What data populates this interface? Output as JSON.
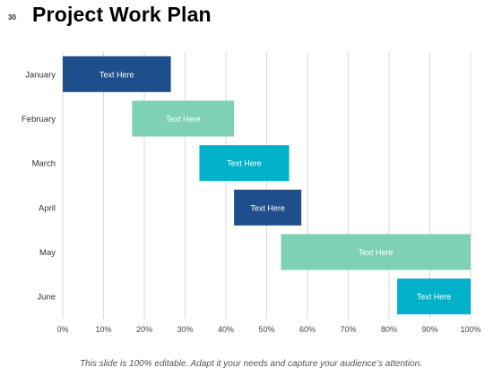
{
  "slide": {
    "number": "30",
    "title": "Project Work Plan",
    "footer": "This slide is 100% editable. Adapt it your needs and capture your audience’s attention."
  },
  "chart_data": {
    "type": "bar",
    "orientation": "horizontal",
    "stacked_gantt": true,
    "categories": [
      "January",
      "February",
      "March",
      "April",
      "May",
      "June"
    ],
    "series": [
      {
        "values": [
          0,
          17,
          33.5,
          42,
          53.5,
          82
        ]
      },
      {
        "values": [
          26.5,
          25,
          22,
          16.5,
          46.5,
          18
        ]
      }
    ],
    "bar_labels": [
      "Text Here",
      "Text Here",
      "Text Here",
      "Text Here",
      "Text Here",
      "Text Here"
    ],
    "bar_colors": [
      "#1f4e8c",
      "#7fd1b5",
      "#00b1c9",
      "#1f4e8c",
      "#7fd1b5",
      "#00b1c9"
    ],
    "xlim": [
      0,
      100
    ],
    "xticks": [
      0,
      10,
      20,
      30,
      40,
      50,
      60,
      70,
      80,
      90,
      100
    ],
    "xtick_labels": [
      "0%",
      "10%",
      "20%",
      "30%",
      "40%",
      "50%",
      "60%",
      "70%",
      "80%",
      "90%",
      "100%"
    ],
    "grid": "vertical",
    "title": "",
    "xlabel": "",
    "ylabel": ""
  }
}
